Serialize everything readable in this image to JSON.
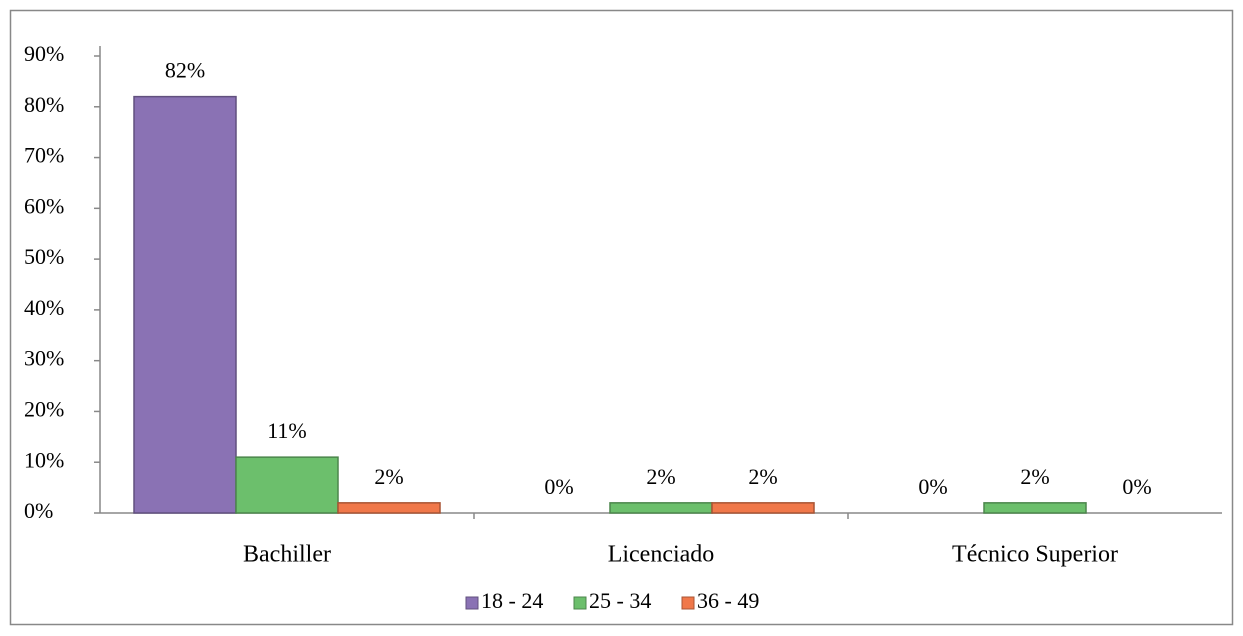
{
  "chart_data": {
    "type": "bar",
    "categories": [
      "Bachiller",
      "Licenciado",
      "Técnico Superior"
    ],
    "series": [
      {
        "name": "18 - 24",
        "color": "#8a72b4",
        "values": [
          82,
          0,
          0
        ],
        "value_labels": [
          "82%",
          "0%",
          "0%"
        ]
      },
      {
        "name": "25 - 34",
        "color": "#6cbf6c",
        "values": [
          11,
          2,
          2
        ],
        "value_labels": [
          "11%",
          "2%",
          "2%"
        ]
      },
      {
        "name": "36 - 49",
        "color": "#f0784a",
        "values": [
          2,
          2,
          0
        ],
        "value_labels": [
          "2%",
          "2%",
          "0%"
        ]
      }
    ],
    "ylim": [
      0,
      90
    ],
    "yticks": [
      {
        "value": 0,
        "label": "0%"
      },
      {
        "value": 10,
        "label": "10%"
      },
      {
        "value": 20,
        "label": "20%"
      },
      {
        "value": 30,
        "label": "30%"
      },
      {
        "value": 40,
        "label": "40%"
      },
      {
        "value": 50,
        "label": "50%"
      },
      {
        "value": 60,
        "label": "60%"
      },
      {
        "value": 70,
        "label": "70%"
      },
      {
        "value": 80,
        "label": "80%"
      },
      {
        "value": 90,
        "label": "90%"
      }
    ],
    "grid": false,
    "legend": "bottom"
  }
}
